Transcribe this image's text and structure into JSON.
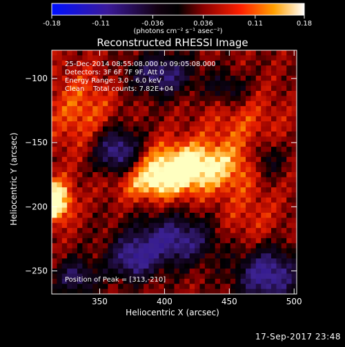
{
  "colorbar": {
    "ticks": [
      "-0.18",
      "-0.11",
      "-0.036",
      "0.036",
      "0.11",
      "0.18"
    ],
    "tick_values": [
      -0.18,
      -0.11,
      -0.036,
      0.036,
      0.11,
      0.18
    ],
    "range": [
      -0.18,
      0.18
    ],
    "unit_label": "(photons cm⁻² s⁻¹ asec⁻²)"
  },
  "chart_data": {
    "type": "heatmap",
    "title": "Reconstructed RHESSI Image",
    "xlabel": "Heliocentric X (arcsec)",
    "ylabel": "Heliocentric Y (arcsec)",
    "xlim": [
      313,
      502
    ],
    "ylim": [
      -268,
      -78
    ],
    "xticks": [
      350,
      400,
      450,
      500
    ],
    "yticks": [
      -100,
      -150,
      -200,
      -250
    ],
    "xtick_labels": [
      "350",
      "400",
      "450",
      "500"
    ],
    "ytick_labels": [
      "−100",
      "−150",
      "−200",
      "−250"
    ],
    "colormap": "red-temperature (blue-purple negative, black zero, red-yellow-white positive)",
    "annotations": [
      "25-Dec-2014 08:55:08.000 to 09:05:08.000",
      "Detectors: 3F 6F 7F 9F, Att 0",
      "Energy Range: 3.0 - 6.0 keV",
      "Clean    Total counts: 7.82E+04"
    ],
    "peak_label": "Position of Peak = [313,-210]",
    "peak_position": [
      313,
      -210
    ],
    "value_range": [
      -0.18,
      0.18
    ]
  },
  "footer": {
    "timestamp": "17-Sep-2017 23:48"
  }
}
